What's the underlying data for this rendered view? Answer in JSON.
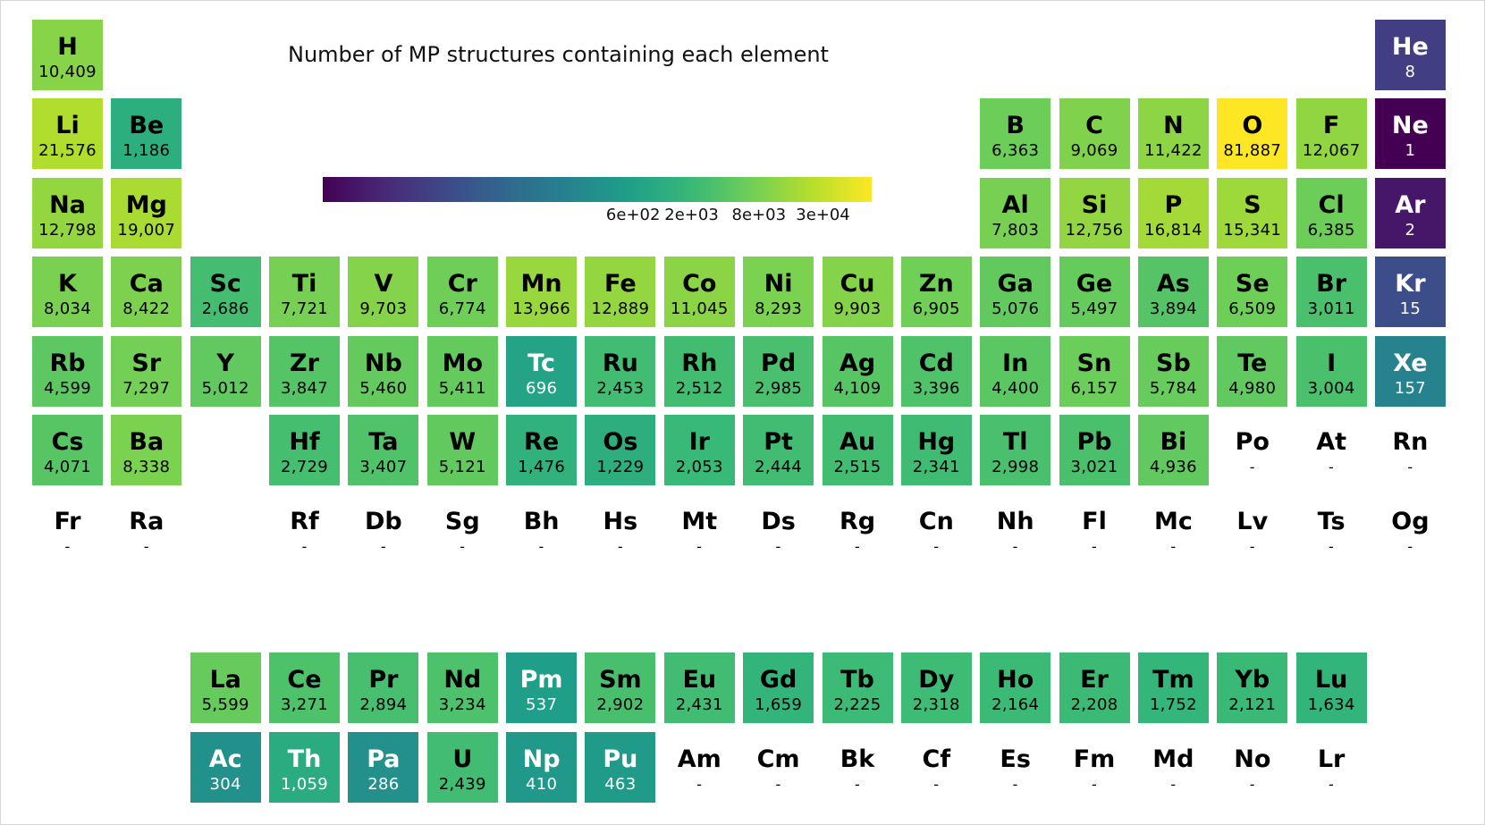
{
  "chart_data": {
    "type": "heatmap",
    "title": "Number of MP structures containing each element",
    "colormap": "viridis",
    "color_scale": "log",
    "color_range": [
      1,
      81887
    ],
    "colorbar_ticks": [
      "6e+02",
      "2e+03",
      "8e+03",
      "3e+04"
    ],
    "colorbar_tick_values": [
      600,
      2000,
      8000,
      30000
    ],
    "colors": {
      "low": "#440154",
      "mid": "#21908d",
      "high": "#fde725",
      "no_data_text": "#000000"
    },
    "no_data_label": "-",
    "elements": [
      {
        "symbol": "H",
        "row": 1,
        "col": 1,
        "value": 10409,
        "label": "10,409"
      },
      {
        "symbol": "He",
        "row": 1,
        "col": 18,
        "value": 8,
        "label": "8"
      },
      {
        "symbol": "Li",
        "row": 2,
        "col": 1,
        "value": 21576,
        "label": "21,576"
      },
      {
        "symbol": "Be",
        "row": 2,
        "col": 2,
        "value": 1186,
        "label": "1,186"
      },
      {
        "symbol": "B",
        "row": 2,
        "col": 13,
        "value": 6363,
        "label": "6,363"
      },
      {
        "symbol": "C",
        "row": 2,
        "col": 14,
        "value": 9069,
        "label": "9,069"
      },
      {
        "symbol": "N",
        "row": 2,
        "col": 15,
        "value": 11422,
        "label": "11,422"
      },
      {
        "symbol": "O",
        "row": 2,
        "col": 16,
        "value": 81887,
        "label": "81,887"
      },
      {
        "symbol": "F",
        "row": 2,
        "col": 17,
        "value": 12067,
        "label": "12,067"
      },
      {
        "symbol": "Ne",
        "row": 2,
        "col": 18,
        "value": 1,
        "label": "1"
      },
      {
        "symbol": "Na",
        "row": 3,
        "col": 1,
        "value": 12798,
        "label": "12,798"
      },
      {
        "symbol": "Mg",
        "row": 3,
        "col": 2,
        "value": 19007,
        "label": "19,007"
      },
      {
        "symbol": "Al",
        "row": 3,
        "col": 13,
        "value": 7803,
        "label": "7,803"
      },
      {
        "symbol": "Si",
        "row": 3,
        "col": 14,
        "value": 12756,
        "label": "12,756"
      },
      {
        "symbol": "P",
        "row": 3,
        "col": 15,
        "value": 16814,
        "label": "16,814"
      },
      {
        "symbol": "S",
        "row": 3,
        "col": 16,
        "value": 15341,
        "label": "15,341"
      },
      {
        "symbol": "Cl",
        "row": 3,
        "col": 17,
        "value": 6385,
        "label": "6,385"
      },
      {
        "symbol": "Ar",
        "row": 3,
        "col": 18,
        "value": 2,
        "label": "2"
      },
      {
        "symbol": "K",
        "row": 4,
        "col": 1,
        "value": 8034,
        "label": "8,034"
      },
      {
        "symbol": "Ca",
        "row": 4,
        "col": 2,
        "value": 8422,
        "label": "8,422"
      },
      {
        "symbol": "Sc",
        "row": 4,
        "col": 3,
        "value": 2686,
        "label": "2,686"
      },
      {
        "symbol": "Ti",
        "row": 4,
        "col": 4,
        "value": 7721,
        "label": "7,721"
      },
      {
        "symbol": "V",
        "row": 4,
        "col": 5,
        "value": 9703,
        "label": "9,703"
      },
      {
        "symbol": "Cr",
        "row": 4,
        "col": 6,
        "value": 6774,
        "label": "6,774"
      },
      {
        "symbol": "Mn",
        "row": 4,
        "col": 7,
        "value": 13966,
        "label": "13,966"
      },
      {
        "symbol": "Fe",
        "row": 4,
        "col": 8,
        "value": 12889,
        "label": "12,889"
      },
      {
        "symbol": "Co",
        "row": 4,
        "col": 9,
        "value": 11045,
        "label": "11,045"
      },
      {
        "symbol": "Ni",
        "row": 4,
        "col": 10,
        "value": 8293,
        "label": "8,293"
      },
      {
        "symbol": "Cu",
        "row": 4,
        "col": 11,
        "value": 9903,
        "label": "9,903"
      },
      {
        "symbol": "Zn",
        "row": 4,
        "col": 12,
        "value": 6905,
        "label": "6,905"
      },
      {
        "symbol": "Ga",
        "row": 4,
        "col": 13,
        "value": 5076,
        "label": "5,076"
      },
      {
        "symbol": "Ge",
        "row": 4,
        "col": 14,
        "value": 5497,
        "label": "5,497"
      },
      {
        "symbol": "As",
        "row": 4,
        "col": 15,
        "value": 3894,
        "label": "3,894"
      },
      {
        "symbol": "Se",
        "row": 4,
        "col": 16,
        "value": 6509,
        "label": "6,509"
      },
      {
        "symbol": "Br",
        "row": 4,
        "col": 17,
        "value": 3011,
        "label": "3,011"
      },
      {
        "symbol": "Kr",
        "row": 4,
        "col": 18,
        "value": 15,
        "label": "15"
      },
      {
        "symbol": "Rb",
        "row": 5,
        "col": 1,
        "value": 4599,
        "label": "4,599"
      },
      {
        "symbol": "Sr",
        "row": 5,
        "col": 2,
        "value": 7297,
        "label": "7,297"
      },
      {
        "symbol": "Y",
        "row": 5,
        "col": 3,
        "value": 5012,
        "label": "5,012"
      },
      {
        "symbol": "Zr",
        "row": 5,
        "col": 4,
        "value": 3847,
        "label": "3,847"
      },
      {
        "symbol": "Nb",
        "row": 5,
        "col": 5,
        "value": 5460,
        "label": "5,460"
      },
      {
        "symbol": "Mo",
        "row": 5,
        "col": 6,
        "value": 5411,
        "label": "5,411"
      },
      {
        "symbol": "Tc",
        "row": 5,
        "col": 7,
        "value": 696,
        "label": "696"
      },
      {
        "symbol": "Ru",
        "row": 5,
        "col": 8,
        "value": 2453,
        "label": "2,453"
      },
      {
        "symbol": "Rh",
        "row": 5,
        "col": 9,
        "value": 2512,
        "label": "2,512"
      },
      {
        "symbol": "Pd",
        "row": 5,
        "col": 10,
        "value": 2985,
        "label": "2,985"
      },
      {
        "symbol": "Ag",
        "row": 5,
        "col": 11,
        "value": 4109,
        "label": "4,109"
      },
      {
        "symbol": "Cd",
        "row": 5,
        "col": 12,
        "value": 3396,
        "label": "3,396"
      },
      {
        "symbol": "In",
        "row": 5,
        "col": 13,
        "value": 4400,
        "label": "4,400"
      },
      {
        "symbol": "Sn",
        "row": 5,
        "col": 14,
        "value": 6157,
        "label": "6,157"
      },
      {
        "symbol": "Sb",
        "row": 5,
        "col": 15,
        "value": 5784,
        "label": "5,784"
      },
      {
        "symbol": "Te",
        "row": 5,
        "col": 16,
        "value": 4980,
        "label": "4,980"
      },
      {
        "symbol": "I",
        "row": 5,
        "col": 17,
        "value": 3004,
        "label": "3,004"
      },
      {
        "symbol": "Xe",
        "row": 5,
        "col": 18,
        "value": 157,
        "label": "157"
      },
      {
        "symbol": "Cs",
        "row": 6,
        "col": 1,
        "value": 4071,
        "label": "4,071"
      },
      {
        "symbol": "Ba",
        "row": 6,
        "col": 2,
        "value": 8338,
        "label": "8,338"
      },
      {
        "symbol": "Hf",
        "row": 6,
        "col": 4,
        "value": 2729,
        "label": "2,729"
      },
      {
        "symbol": "Ta",
        "row": 6,
        "col": 5,
        "value": 3407,
        "label": "3,407"
      },
      {
        "symbol": "W",
        "row": 6,
        "col": 6,
        "value": 5121,
        "label": "5,121"
      },
      {
        "symbol": "Re",
        "row": 6,
        "col": 7,
        "value": 1476,
        "label": "1,476"
      },
      {
        "symbol": "Os",
        "row": 6,
        "col": 8,
        "value": 1229,
        "label": "1,229"
      },
      {
        "symbol": "Ir",
        "row": 6,
        "col": 9,
        "value": 2053,
        "label": "2,053"
      },
      {
        "symbol": "Pt",
        "row": 6,
        "col": 10,
        "value": 2444,
        "label": "2,444"
      },
      {
        "symbol": "Au",
        "row": 6,
        "col": 11,
        "value": 2515,
        "label": "2,515"
      },
      {
        "symbol": "Hg",
        "row": 6,
        "col": 12,
        "value": 2341,
        "label": "2,341"
      },
      {
        "symbol": "Tl",
        "row": 6,
        "col": 13,
        "value": 2998,
        "label": "2,998"
      },
      {
        "symbol": "Pb",
        "row": 6,
        "col": 14,
        "value": 3021,
        "label": "3,021"
      },
      {
        "symbol": "Bi",
        "row": 6,
        "col": 15,
        "value": 4936,
        "label": "4,936"
      },
      {
        "symbol": "Po",
        "row": 6,
        "col": 16,
        "value": null,
        "label": "-"
      },
      {
        "symbol": "At",
        "row": 6,
        "col": 17,
        "value": null,
        "label": "-"
      },
      {
        "symbol": "Rn",
        "row": 6,
        "col": 18,
        "value": null,
        "label": "-"
      },
      {
        "symbol": "Fr",
        "row": 7,
        "col": 1,
        "value": null,
        "label": "-"
      },
      {
        "symbol": "Ra",
        "row": 7,
        "col": 2,
        "value": null,
        "label": "-"
      },
      {
        "symbol": "Rf",
        "row": 7,
        "col": 4,
        "value": null,
        "label": "-"
      },
      {
        "symbol": "Db",
        "row": 7,
        "col": 5,
        "value": null,
        "label": "-"
      },
      {
        "symbol": "Sg",
        "row": 7,
        "col": 6,
        "value": null,
        "label": "-"
      },
      {
        "symbol": "Bh",
        "row": 7,
        "col": 7,
        "value": null,
        "label": "-"
      },
      {
        "symbol": "Hs",
        "row": 7,
        "col": 8,
        "value": null,
        "label": "-"
      },
      {
        "symbol": "Mt",
        "row": 7,
        "col": 9,
        "value": null,
        "label": "-"
      },
      {
        "symbol": "Ds",
        "row": 7,
        "col": 10,
        "value": null,
        "label": "-"
      },
      {
        "symbol": "Rg",
        "row": 7,
        "col": 11,
        "value": null,
        "label": "-"
      },
      {
        "symbol": "Cn",
        "row": 7,
        "col": 12,
        "value": null,
        "label": "-"
      },
      {
        "symbol": "Nh",
        "row": 7,
        "col": 13,
        "value": null,
        "label": "-"
      },
      {
        "symbol": "Fl",
        "row": 7,
        "col": 14,
        "value": null,
        "label": "-"
      },
      {
        "symbol": "Mc",
        "row": 7,
        "col": 15,
        "value": null,
        "label": "-"
      },
      {
        "symbol": "Lv",
        "row": 7,
        "col": 16,
        "value": null,
        "label": "-"
      },
      {
        "symbol": "Ts",
        "row": 7,
        "col": 17,
        "value": null,
        "label": "-"
      },
      {
        "symbol": "Og",
        "row": 7,
        "col": 18,
        "value": null,
        "label": "-"
      },
      {
        "symbol": "La",
        "row": 9,
        "col": 3,
        "value": 5599,
        "label": "5,599"
      },
      {
        "symbol": "Ce",
        "row": 9,
        "col": 4,
        "value": 3271,
        "label": "3,271"
      },
      {
        "symbol": "Pr",
        "row": 9,
        "col": 5,
        "value": 2894,
        "label": "2,894"
      },
      {
        "symbol": "Nd",
        "row": 9,
        "col": 6,
        "value": 3234,
        "label": "3,234"
      },
      {
        "symbol": "Pm",
        "row": 9,
        "col": 7,
        "value": 537,
        "label": "537"
      },
      {
        "symbol": "Sm",
        "row": 9,
        "col": 8,
        "value": 2902,
        "label": "2,902"
      },
      {
        "symbol": "Eu",
        "row": 9,
        "col": 9,
        "value": 2431,
        "label": "2,431"
      },
      {
        "symbol": "Gd",
        "row": 9,
        "col": 10,
        "value": 1659,
        "label": "1,659"
      },
      {
        "symbol": "Tb",
        "row": 9,
        "col": 11,
        "value": 2225,
        "label": "2,225"
      },
      {
        "symbol": "Dy",
        "row": 9,
        "col": 12,
        "value": 2318,
        "label": "2,318"
      },
      {
        "symbol": "Ho",
        "row": 9,
        "col": 13,
        "value": 2164,
        "label": "2,164"
      },
      {
        "symbol": "Er",
        "row": 9,
        "col": 14,
        "value": 2208,
        "label": "2,208"
      },
      {
        "symbol": "Tm",
        "row": 9,
        "col": 15,
        "value": 1752,
        "label": "1,752"
      },
      {
        "symbol": "Yb",
        "row": 9,
        "col": 16,
        "value": 2121,
        "label": "2,121"
      },
      {
        "symbol": "Lu",
        "row": 9,
        "col": 17,
        "value": 1634,
        "label": "1,634"
      },
      {
        "symbol": "Ac",
        "row": 10,
        "col": 3,
        "value": 304,
        "label": "304"
      },
      {
        "symbol": "Th",
        "row": 10,
        "col": 4,
        "value": 1059,
        "label": "1,059"
      },
      {
        "symbol": "Pa",
        "row": 10,
        "col": 5,
        "value": 286,
        "label": "286"
      },
      {
        "symbol": "U",
        "row": 10,
        "col": 6,
        "value": 2439,
        "label": "2,439"
      },
      {
        "symbol": "Np",
        "row": 10,
        "col": 7,
        "value": 410,
        "label": "410"
      },
      {
        "symbol": "Pu",
        "row": 10,
        "col": 8,
        "value": 463,
        "label": "463"
      },
      {
        "symbol": "Am",
        "row": 10,
        "col": 9,
        "value": null,
        "label": "-"
      },
      {
        "symbol": "Cm",
        "row": 10,
        "col": 10,
        "value": null,
        "label": "-"
      },
      {
        "symbol": "Bk",
        "row": 10,
        "col": 11,
        "value": null,
        "label": "-"
      },
      {
        "symbol": "Cf",
        "row": 10,
        "col": 12,
        "value": null,
        "label": "-"
      },
      {
        "symbol": "Es",
        "row": 10,
        "col": 13,
        "value": null,
        "label": "-"
      },
      {
        "symbol": "Fm",
        "row": 10,
        "col": 14,
        "value": null,
        "label": "-"
      },
      {
        "symbol": "Md",
        "row": 10,
        "col": 15,
        "value": null,
        "label": "-"
      },
      {
        "symbol": "No",
        "row": 10,
        "col": 16,
        "value": null,
        "label": "-"
      },
      {
        "symbol": "Lr",
        "row": 10,
        "col": 17,
        "value": null,
        "label": "-"
      }
    ]
  }
}
